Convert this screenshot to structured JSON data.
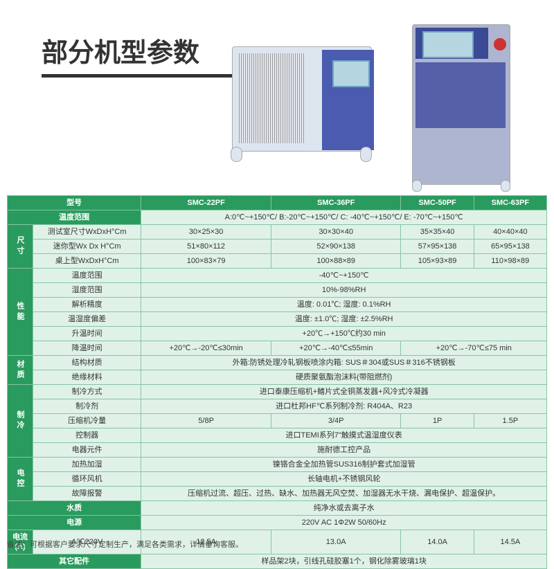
{
  "title": "部分机型参数",
  "header": {
    "model": "型号",
    "tempRange": "温度范围",
    "tempRangeVal": "A:0℃~+150℃/ B:-20℃~+150℃/ C: -40℃~+150℃/ E: -70℃~+150℃"
  },
  "models": [
    "SMC-22PF",
    "SMC-36PF",
    "SMC-50PF",
    "SMC-63PF"
  ],
  "sections": [
    {
      "vert": "尺寸",
      "rows": [
        {
          "label": "测试室尺寸WxDxH°Cm",
          "cells": [
            "30×25×30",
            "30×30×40",
            "35×35×40",
            "40×40×40"
          ]
        },
        {
          "label": "迷你型Wx Dx H°Cm",
          "cells": [
            "51×80×112",
            "52×90×138",
            "57×95×138",
            "65×95×138"
          ]
        },
        {
          "label": "桌上型WxDxH°Cm",
          "cells": [
            "100×83×79",
            "100×88×89",
            "105×93×89",
            "110×98×89"
          ]
        }
      ]
    },
    {
      "vert": "性能",
      "rows": [
        {
          "label": "温度范围",
          "span": "-40℃~+150℃"
        },
        {
          "label": "湿度范围",
          "span": "10%-98%RH"
        },
        {
          "label": "解析精度",
          "span": "温度: 0.01℃; 湿度: 0.1%RH"
        },
        {
          "label": "温湿度偏差",
          "span": "温度: ±1.0℃; 湿度: ±2.5%RH"
        },
        {
          "label": "升温时间",
          "span": "+20℃→+150℃约30 min"
        },
        {
          "label": "降温时间",
          "merged": [
            {
              "t": "+20℃→-20℃≤30min",
              "c": 1
            },
            {
              "t": "+20℃→-40℃≤55min",
              "c": 1
            },
            {
              "t": "+20℃→-70℃≤75 min",
              "c": 2
            }
          ]
        }
      ]
    },
    {
      "vert": "材质",
      "rows": [
        {
          "label": "结构材质",
          "span": "外箱:防锈处理冷轧钢板喷涂内箱: SUS＃304或SUS＃316不锈钢板"
        },
        {
          "label": "绝缘材料",
          "span": "硬质聚氨酯泡沫料(带阻燃剂)"
        }
      ]
    },
    {
      "vert": "制冷",
      "rows": [
        {
          "label": "制冷方式",
          "span": "进口泰康压缩机+鳍片式全铜蒸发器+风冷式冷凝器"
        },
        {
          "label": "制冷剂",
          "span": "进口杜邦HF℃系列制冷剂: R404A、R23"
        },
        {
          "label": "压缩机冷量",
          "cells": [
            "5/8P",
            "3/4P",
            "1P",
            "1.5P"
          ]
        },
        {
          "label": "控制器",
          "span": "进口TEMI系列7\"触摸式温湿度仪表"
        },
        {
          "label": "电器元件",
          "span": "施耐德工控产品"
        }
      ]
    },
    {
      "vert": "电控",
      "rows": [
        {
          "label": "加热加湿",
          "span": "镍铬合金全加热管SUS316制护套式加湿管"
        },
        {
          "label": "循环风机",
          "span": "长轴电机+不锈钢风轮"
        },
        {
          "label": "故障报警",
          "span": "压缩机过流、超压、过热、缺水、加热器无风空焚、加湿器无水干烧、漏电保护、超温保护。"
        }
      ]
    }
  ],
  "bottomRows": [
    {
      "label": "水质",
      "span": "纯净水或去离子水",
      "colspan2": true
    },
    {
      "label": "电源",
      "span": "220V AC 1Φ2W 50/60Hz",
      "colspan2": true
    },
    {
      "label": "电流(A)",
      "label2": "A℃220V",
      "cells": [
        "12.5A",
        "13.0A",
        "14.0A",
        "14.5A"
      ]
    },
    {
      "label": "其它配件",
      "span": "样品架2块，引线孔硅胶塞1个，钢化除雾玻璃1块",
      "colspan2": true
    }
  ],
  "footnote": "备注：可根据客户要求尺寸定制生产，满足各类需求，详情垂询客服。"
}
